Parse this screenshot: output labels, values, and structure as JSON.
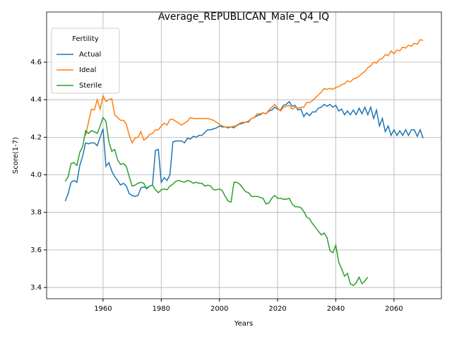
{
  "chart_data": {
    "type": "line",
    "title": "Average_REPUBLICAN_Male_Q4_IQ",
    "x_label": "Years",
    "y_label": "Score(1-7)",
    "x": [
      1947,
      1948,
      1949,
      1950,
      1951,
      1952,
      1953,
      1954,
      1955,
      1956,
      1957,
      1958,
      1959,
      1960,
      1961,
      1962,
      1963,
      1964,
      1965,
      1966,
      1967,
      1968,
      1969,
      1970,
      1971,
      1972,
      1973,
      1974,
      1975,
      1976,
      1977,
      1978,
      1979,
      1980,
      1981,
      1982,
      1983,
      1984,
      1985,
      1986,
      1987,
      1988,
      1989,
      1990,
      1991,
      1992,
      1993,
      1994,
      1995,
      1996,
      1997,
      1998,
      1999,
      2000,
      2001,
      2002,
      2003,
      2004,
      2005,
      2006,
      2007,
      2008,
      2009,
      2010,
      2011,
      2012,
      2013,
      2014,
      2015,
      2016,
      2017,
      2018,
      2019,
      2020,
      2021,
      2022,
      2023,
      2024,
      2025,
      2026,
      2027,
      2028,
      2029,
      2030,
      2031,
      2032,
      2033,
      2034,
      2035,
      2036,
      2037,
      2038,
      2039,
      2040,
      2041,
      2042,
      2043,
      2044,
      2045,
      2046,
      2047,
      2048,
      2049,
      2050,
      2051,
      2052,
      2053,
      2054,
      2055,
      2056,
      2057,
      2058,
      2059,
      2060,
      2061,
      2062,
      2063,
      2064,
      2065,
      2066,
      2067,
      2068,
      2069,
      2070
    ],
    "series": [
      {
        "name": "Actual",
        "color": "#1f77b4",
        "values": [
          3.86,
          3.9,
          3.96,
          3.97,
          3.96,
          4.05,
          4.1,
          4.17,
          4.165,
          4.17,
          4.17,
          4.155,
          4.2,
          4.245,
          4.045,
          4.065,
          4.02,
          3.99,
          3.97,
          3.945,
          3.955,
          3.94,
          3.9,
          3.89,
          3.885,
          3.89,
          3.93,
          3.935,
          3.93,
          3.94,
          3.945,
          4.13,
          4.135,
          3.96,
          3.985,
          3.97,
          4.0,
          4.175,
          4.18,
          4.18,
          4.18,
          4.17,
          4.195,
          4.19,
          4.205,
          4.2,
          4.21,
          4.21,
          4.225,
          4.24,
          4.24,
          4.245,
          4.25,
          4.26,
          4.255,
          4.255,
          4.25,
          4.255,
          4.25,
          4.265,
          4.27,
          4.275,
          4.28,
          4.285,
          4.3,
          4.305,
          4.315,
          4.32,
          4.33,
          4.325,
          4.34,
          4.345,
          4.36,
          4.35,
          4.345,
          4.37,
          4.375,
          4.39,
          4.365,
          4.37,
          4.345,
          4.35,
          4.31,
          4.33,
          4.315,
          4.335,
          4.335,
          4.355,
          4.36,
          4.375,
          4.365,
          4.375,
          4.36,
          4.37,
          4.34,
          4.35,
          4.32,
          4.34,
          4.32,
          4.345,
          4.32,
          4.355,
          4.325,
          4.36,
          4.32,
          4.36,
          4.3,
          4.345,
          4.26,
          4.3,
          4.23,
          4.26,
          4.21,
          4.24,
          4.21,
          4.235,
          4.21,
          4.24,
          4.21,
          4.24,
          4.24,
          4.205,
          4.24,
          4.195
        ]
      },
      {
        "name": "Ideal",
        "color": "#ff7f0e",
        "values": [
          null,
          null,
          null,
          null,
          null,
          null,
          null,
          4.21,
          4.28,
          4.35,
          4.345,
          4.4,
          4.35,
          4.42,
          4.39,
          4.4,
          4.405,
          4.32,
          4.305,
          4.29,
          4.29,
          4.27,
          4.21,
          4.17,
          4.195,
          4.2,
          4.23,
          4.185,
          4.195,
          4.215,
          4.22,
          4.24,
          4.24,
          4.26,
          4.275,
          4.265,
          4.295,
          4.295,
          4.285,
          4.275,
          4.265,
          4.275,
          4.285,
          4.305,
          4.3,
          4.3,
          4.3,
          4.3,
          4.3,
          4.3,
          4.295,
          4.29,
          4.28,
          4.27,
          4.26,
          4.255,
          4.255,
          4.255,
          4.26,
          4.26,
          4.275,
          4.28,
          4.28,
          4.28,
          4.3,
          4.305,
          4.325,
          4.325,
          4.33,
          4.325,
          4.345,
          4.36,
          4.375,
          4.355,
          4.34,
          4.36,
          4.365,
          4.37,
          4.35,
          4.36,
          4.355,
          4.36,
          4.36,
          4.385,
          4.385,
          4.395,
          4.41,
          4.425,
          4.44,
          4.46,
          4.455,
          4.46,
          4.455,
          4.465,
          4.47,
          4.48,
          4.485,
          4.5,
          4.495,
          4.51,
          4.515,
          4.525,
          4.54,
          4.55,
          4.57,
          4.58,
          4.6,
          4.595,
          4.615,
          4.62,
          4.64,
          4.635,
          4.66,
          4.645,
          4.665,
          4.66,
          4.68,
          4.675,
          4.69,
          4.685,
          4.7,
          4.695,
          4.72,
          4.715
        ]
      },
      {
        "name": "Sterile",
        "color": "#2ca02c",
        "values": [
          3.965,
          3.99,
          4.06,
          4.065,
          4.05,
          4.12,
          4.15,
          4.235,
          4.22,
          4.235,
          4.23,
          4.22,
          4.26,
          4.305,
          4.285,
          4.175,
          4.125,
          4.135,
          4.08,
          4.055,
          4.06,
          4.045,
          3.99,
          3.94,
          3.945,
          3.955,
          3.96,
          3.955,
          3.925,
          3.94,
          3.945,
          3.92,
          3.905,
          3.92,
          3.925,
          3.92,
          3.94,
          3.95,
          3.965,
          3.97,
          3.965,
          3.96,
          3.97,
          3.965,
          3.955,
          3.96,
          3.955,
          3.955,
          3.94,
          3.945,
          3.94,
          3.92,
          3.92,
          3.925,
          3.915,
          3.885,
          3.86,
          3.855,
          3.96,
          3.96,
          3.95,
          3.93,
          3.91,
          3.905,
          3.885,
          3.885,
          3.885,
          3.88,
          3.875,
          3.845,
          3.85,
          3.875,
          3.89,
          3.875,
          3.875,
          3.87,
          3.87,
          3.875,
          3.845,
          3.83,
          3.83,
          3.825,
          3.805,
          3.775,
          3.765,
          3.74,
          3.72,
          3.7,
          3.68,
          3.69,
          3.665,
          3.595,
          3.585,
          3.625,
          3.535,
          3.5,
          3.46,
          3.475,
          3.42,
          3.41,
          3.425,
          3.455,
          3.42,
          3.435,
          3.455,
          null,
          null,
          null,
          null,
          null,
          null,
          null,
          null,
          null,
          null,
          null,
          null,
          null,
          null,
          null,
          null,
          null,
          null,
          null
        ]
      }
    ],
    "xlim": [
      1940.6,
      2076.3
    ],
    "xticks": [
      1960,
      1980,
      2000,
      2020,
      2040,
      2060
    ],
    "ylim": [
      3.34,
      4.867
    ],
    "yticks": [
      3.4,
      3.6,
      3.8,
      {
        "value": 4,
        "label": "4.0"
      },
      4.2,
      4.4,
      4.6
    ],
    "grid": true,
    "legend_title": "Fertility",
    "legend_position": "upper left"
  }
}
